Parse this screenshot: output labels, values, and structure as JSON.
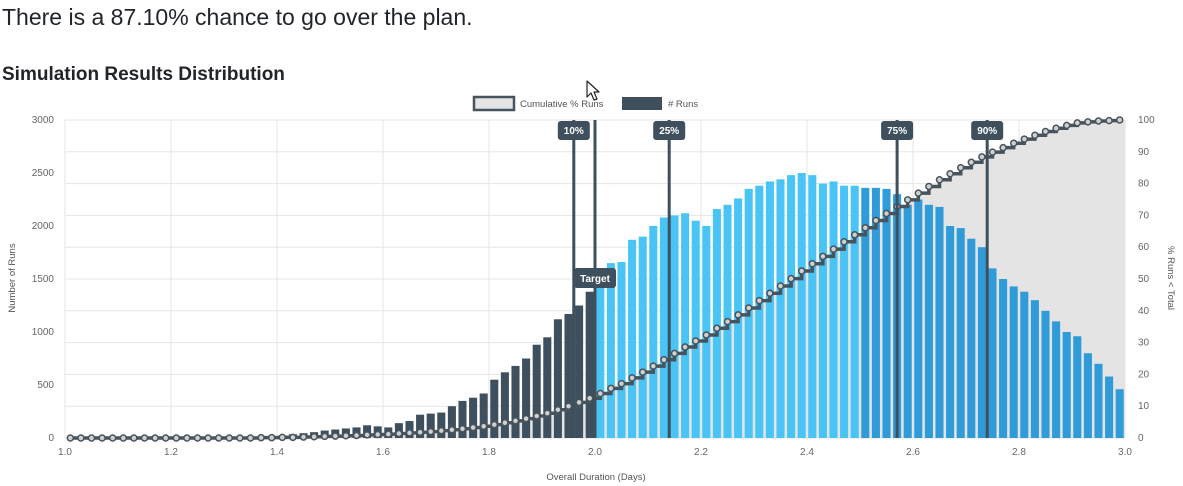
{
  "headline": "There is a 87.10% chance to go over the plan.",
  "section_title": "Simulation Results Distribution",
  "colors": {
    "bar_below_target": "#3e505d",
    "bar_above_target_light": "#48c4f5",
    "bar_above_target_dark": "#2f9bd8",
    "cumulative_line": "#47535d",
    "cumulative_fill": "#e4e4e4",
    "marker": "#3e505d"
  },
  "chart_data": {
    "type": "bar",
    "x_axis_title": "Overall Duration (Days)",
    "y_left_title": "Number of Runs",
    "y_right_title": "% Runs < Total",
    "xlim": [
      1.0,
      3.0
    ],
    "ylim_left": [
      0,
      3000
    ],
    "ylim_right": [
      0,
      100
    ],
    "x_ticks": [
      "1.0",
      "1.2",
      "1.4",
      "1.6",
      "1.8",
      "2.0",
      "2.2",
      "2.4",
      "2.6",
      "2.8",
      "3.0"
    ],
    "y_left_ticks": [
      "0",
      "500",
      "1000",
      "1500",
      "2000",
      "2500",
      "3000"
    ],
    "y_right_ticks": [
      "0",
      "10",
      "20",
      "30",
      "40",
      "50",
      "60",
      "70",
      "80",
      "90",
      "100"
    ],
    "grid": true,
    "legend_position": "top",
    "legend": [
      {
        "label": "Cumulative % Runs",
        "kind": "cumulative"
      },
      {
        "label": "# Runs",
        "kind": "bars"
      }
    ],
    "bin_starts": [
      1.0,
      1.02,
      1.04,
      1.06,
      1.08,
      1.1,
      1.12,
      1.14,
      1.16,
      1.18,
      1.2,
      1.22,
      1.24,
      1.26,
      1.28,
      1.3,
      1.32,
      1.34,
      1.36,
      1.38,
      1.4,
      1.42,
      1.44,
      1.46,
      1.48,
      1.5,
      1.52,
      1.54,
      1.56,
      1.58,
      1.6,
      1.62,
      1.64,
      1.66,
      1.68,
      1.7,
      1.72,
      1.74,
      1.76,
      1.78,
      1.8,
      1.82,
      1.84,
      1.86,
      1.88,
      1.9,
      1.92,
      1.94,
      1.96,
      1.98,
      2.0,
      2.02,
      2.04,
      2.06,
      2.08,
      2.1,
      2.12,
      2.14,
      2.16,
      2.18,
      2.2,
      2.22,
      2.24,
      2.26,
      2.28,
      2.3,
      2.32,
      2.34,
      2.36,
      2.38,
      2.4,
      2.42,
      2.44,
      2.46,
      2.48,
      2.5,
      2.52,
      2.54,
      2.56,
      2.58,
      2.6,
      2.62,
      2.64,
      2.66,
      2.68,
      2.7,
      2.72,
      2.74,
      2.76,
      2.78,
      2.8,
      2.82,
      2.84,
      2.86,
      2.88,
      2.9,
      2.92,
      2.94,
      2.96,
      2.98
    ],
    "runs": [
      0,
      0,
      0,
      0,
      0,
      0,
      0,
      0,
      0,
      0,
      0,
      0,
      0,
      0,
      0,
      5,
      5,
      10,
      15,
      20,
      25,
      35,
      45,
      55,
      70,
      80,
      90,
      100,
      120,
      110,
      100,
      140,
      160,
      220,
      230,
      240,
      300,
      350,
      380,
      420,
      550,
      620,
      680,
      750,
      880,
      950,
      1120,
      1170,
      1250,
      1380,
      1550,
      1650,
      1660,
      1870,
      1900,
      2000,
      2080,
      2100,
      2120,
      2050,
      2000,
      2160,
      2200,
      2260,
      2350,
      2380,
      2420,
      2440,
      2480,
      2500,
      2480,
      2400,
      2420,
      2380,
      2380,
      2360,
      2360,
      2350,
      2300,
      2200,
      2250,
      2200,
      2180,
      2000,
      1980,
      1880,
      1800,
      1600,
      1500,
      1430,
      1380,
      1300,
      1200,
      1100,
      1000,
      960,
      800,
      700,
      580,
      460
    ],
    "cumulative_pct": [
      0,
      0,
      0,
      0,
      0,
      0,
      0,
      0,
      0,
      0,
      0,
      0,
      0,
      0,
      0,
      0,
      0,
      0,
      0.1,
      0.1,
      0.2,
      0.2,
      0.3,
      0.4,
      0.5,
      0.6,
      0.7,
      0.8,
      1.0,
      1.1,
      1.2,
      1.4,
      1.6,
      1.8,
      2.0,
      2.3,
      2.6,
      2.9,
      3.3,
      3.7,
      4.2,
      4.8,
      5.4,
      6.1,
      6.9,
      7.8,
      8.9,
      10.0,
      11.2,
      12.5,
      14.0,
      15.6,
      17.1,
      18.9,
      20.7,
      22.6,
      24.6,
      26.6,
      28.6,
      30.5,
      32.4,
      34.5,
      36.6,
      38.7,
      40.9,
      43.2,
      45.5,
      47.8,
      50.1,
      52.5,
      54.8,
      57.1,
      59.4,
      61.7,
      63.9,
      66.1,
      68.4,
      70.6,
      72.8,
      74.9,
      77.0,
      79.1,
      81.2,
      83.1,
      85.0,
      86.7,
      88.4,
      89.9,
      91.3,
      92.7,
      94.0,
      95.2,
      96.4,
      97.4,
      98.3,
      99.1,
      99.4,
      99.7,
      99.8,
      100
    ],
    "target": {
      "label": "Target",
      "x": 2.0
    },
    "percentile_markers": [
      {
        "label": "10%",
        "x": 1.96
      },
      {
        "label": "25%",
        "x": 2.14
      },
      {
        "label": "75%",
        "x": 2.57
      },
      {
        "label": "90%",
        "x": 2.74
      }
    ]
  }
}
